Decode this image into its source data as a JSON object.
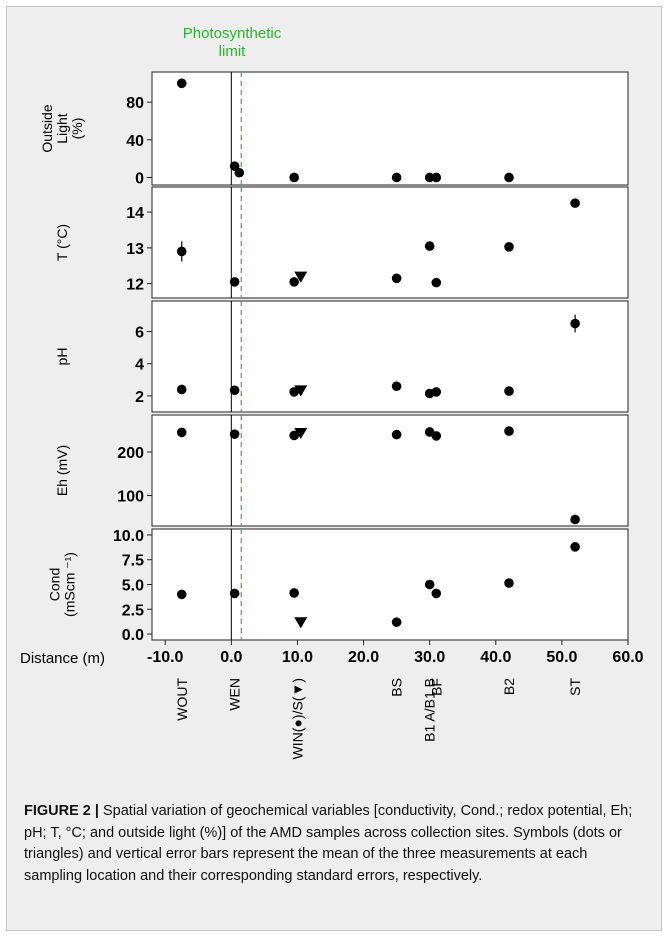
{
  "figure": {
    "label": "FIGURE 2 |",
    "caption": " Spatial variation of geochemical variables [conductivity, Cond.; redox potential, Eh; pH; T, °C; and outside light (%)] of the AMD samples across collection sites. Symbols (dots or triangles) and vertical error bars represent the mean of the three measurements at each sampling location and their corresponding standard errors, respectively."
  },
  "colors": {
    "limit_line": "#33bb33",
    "annotation": "#22bb22",
    "markers": "#000000",
    "panel_fill": "#ffffff"
  },
  "chart_data": {
    "type": "scatter",
    "xlabel": "Distance (m)",
    "xlim": [
      -12,
      60
    ],
    "x_ticks": [
      "-10.0",
      "0.0",
      "10.0",
      "20.0",
      "30.0",
      "40.0",
      "50.0",
      "60.0"
    ],
    "x_tick_values": [
      -10,
      0,
      10,
      20,
      30,
      40,
      50,
      60
    ],
    "zero_line_x": 0,
    "photosynthetic_limit": {
      "label_line1": "Photosynthetic",
      "label_line2": "limit",
      "x": 1.5
    },
    "sites": [
      {
        "label": "WOUT",
        "x": -7.5
      },
      {
        "label": "WEN",
        "x": 0.5
      },
      {
        "label": "WIN(●)/S(▼)",
        "x": 10
      },
      {
        "label": "BS",
        "x": 25
      },
      {
        "label": "B1 A/B1 B",
        "x": 30
      },
      {
        "label": "BF",
        "x": 31
      },
      {
        "label": "B2",
        "x": 42
      },
      {
        "label": "ST",
        "x": 52
      }
    ],
    "panels": [
      {
        "ylabel_lines": [
          "Outside",
          "Light",
          "(%)"
        ],
        "ylim": [
          -8,
          112
        ],
        "y_ticks": [
          "0",
          "40",
          "80"
        ],
        "y_tick_values": [
          0,
          40,
          80
        ],
        "points": [
          {
            "x": -7.5,
            "y": 100,
            "marker": "circle"
          },
          {
            "x": 0.5,
            "y": 12,
            "marker": "circle"
          },
          {
            "x": 1.2,
            "y": 5,
            "marker": "circle"
          },
          {
            "x": 9.5,
            "y": 0,
            "marker": "circle"
          },
          {
            "x": 25,
            "y": 0,
            "marker": "circle"
          },
          {
            "x": 30,
            "y": 0,
            "marker": "circle"
          },
          {
            "x": 31,
            "y": 0,
            "marker": "circle"
          },
          {
            "x": 42,
            "y": 0,
            "marker": "circle"
          }
        ]
      },
      {
        "ylabel_lines": [
          "T (°C)"
        ],
        "ylim": [
          11.6,
          14.7
        ],
        "y_ticks": [
          "12",
          "13",
          "14"
        ],
        "y_tick_values": [
          12,
          13,
          14
        ],
        "points": [
          {
            "x": -7.5,
            "y": 12.9,
            "marker": "circle",
            "err": 0.28
          },
          {
            "x": 0.5,
            "y": 12.05,
            "marker": "circle"
          },
          {
            "x": 9.5,
            "y": 12.05,
            "marker": "circle"
          },
          {
            "x": 10.5,
            "y": 12.2,
            "marker": "triangle"
          },
          {
            "x": 25,
            "y": 12.15,
            "marker": "circle"
          },
          {
            "x": 30,
            "y": 13.05,
            "marker": "circle"
          },
          {
            "x": 31,
            "y": 12.03,
            "marker": "circle"
          },
          {
            "x": 42,
            "y": 13.03,
            "marker": "circle"
          },
          {
            "x": 52,
            "y": 14.25,
            "marker": "circle"
          }
        ]
      },
      {
        "ylabel_lines": [
          "pH"
        ],
        "ylim": [
          1.0,
          7.9
        ],
        "y_ticks": [
          "2",
          "4",
          "6"
        ],
        "y_tick_values": [
          2,
          4,
          6
        ],
        "points": [
          {
            "x": -7.5,
            "y": 2.4,
            "marker": "circle"
          },
          {
            "x": 0.5,
            "y": 2.35,
            "marker": "circle"
          },
          {
            "x": 9.5,
            "y": 2.25,
            "marker": "circle"
          },
          {
            "x": 10.5,
            "y": 2.35,
            "marker": "triangle"
          },
          {
            "x": 25,
            "y": 2.6,
            "marker": "circle"
          },
          {
            "x": 30,
            "y": 2.15,
            "marker": "circle"
          },
          {
            "x": 31,
            "y": 2.25,
            "marker": "circle"
          },
          {
            "x": 42,
            "y": 2.3,
            "marker": "circle"
          },
          {
            "x": 52,
            "y": 6.5,
            "marker": "circle",
            "err": 0.55
          }
        ]
      },
      {
        "ylabel_lines": [
          "Eh (mV)"
        ],
        "ylim": [
          30,
          285
        ],
        "y_ticks": [
          "100",
          "200"
        ],
        "y_tick_values": [
          100,
          200
        ],
        "points": [
          {
            "x": -7.5,
            "y": 245,
            "marker": "circle"
          },
          {
            "x": 0.5,
            "y": 241,
            "marker": "circle"
          },
          {
            "x": 9.5,
            "y": 238,
            "marker": "circle"
          },
          {
            "x": 10.5,
            "y": 244,
            "marker": "triangle"
          },
          {
            "x": 25,
            "y": 240,
            "marker": "circle"
          },
          {
            "x": 30,
            "y": 246,
            "marker": "circle"
          },
          {
            "x": 31,
            "y": 237,
            "marker": "circle"
          },
          {
            "x": 42,
            "y": 248,
            "marker": "circle"
          },
          {
            "x": 52,
            "y": 45,
            "marker": "circle"
          }
        ]
      },
      {
        "ylabel_lines": [
          "Cond",
          "(mScm ⁻¹)"
        ],
        "ylim": [
          -0.6,
          10.6
        ],
        "y_ticks": [
          "0.0",
          "2.5",
          "5.0",
          "7.5",
          "10.0"
        ],
        "y_tick_values": [
          0,
          2.5,
          5,
          7.5,
          10
        ],
        "points": [
          {
            "x": -7.5,
            "y": 4.0,
            "marker": "circle"
          },
          {
            "x": 0.5,
            "y": 4.1,
            "marker": "circle"
          },
          {
            "x": 9.5,
            "y": 4.15,
            "marker": "circle"
          },
          {
            "x": 10.5,
            "y": 1.2,
            "marker": "triangle"
          },
          {
            "x": 25,
            "y": 1.2,
            "marker": "circle"
          },
          {
            "x": 30,
            "y": 5.0,
            "marker": "circle"
          },
          {
            "x": 31,
            "y": 4.1,
            "marker": "circle"
          },
          {
            "x": 42,
            "y": 5.15,
            "marker": "circle"
          },
          {
            "x": 52,
            "y": 8.8,
            "marker": "circle"
          }
        ]
      }
    ]
  }
}
